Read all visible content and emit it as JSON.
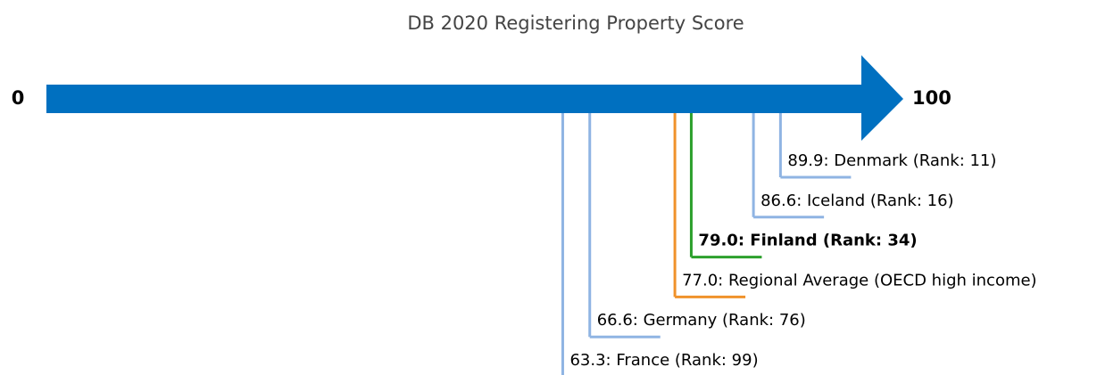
{
  "chart_data": {
    "type": "number-line",
    "title": "DB 2020 Registering Property Score",
    "xlim": [
      0,
      100
    ],
    "xticks": [
      0,
      100
    ],
    "axis_color": "#0070c0",
    "values": [
      89.9,
      86.6,
      79.0,
      77.0,
      66.6,
      63.3
    ],
    "value_labels": [
      "89.9: Denmark (Rank: 11)",
      "86.6: Iceland (Rank: 16)",
      "79.0: Finland (Rank: 34)",
      "77.0: Regional Average (OECD high income)",
      "66.6: Germany (Rank: 76)",
      "63.3: France (Rank: 99)"
    ],
    "colors": [
      "#8fb4e3",
      "#8fb4e3",
      "#2ca02c",
      "#f0922b",
      "#8fb4e3",
      "#8fb4e3"
    ],
    "emphasis": [
      false,
      false,
      true,
      false,
      false,
      false
    ]
  }
}
